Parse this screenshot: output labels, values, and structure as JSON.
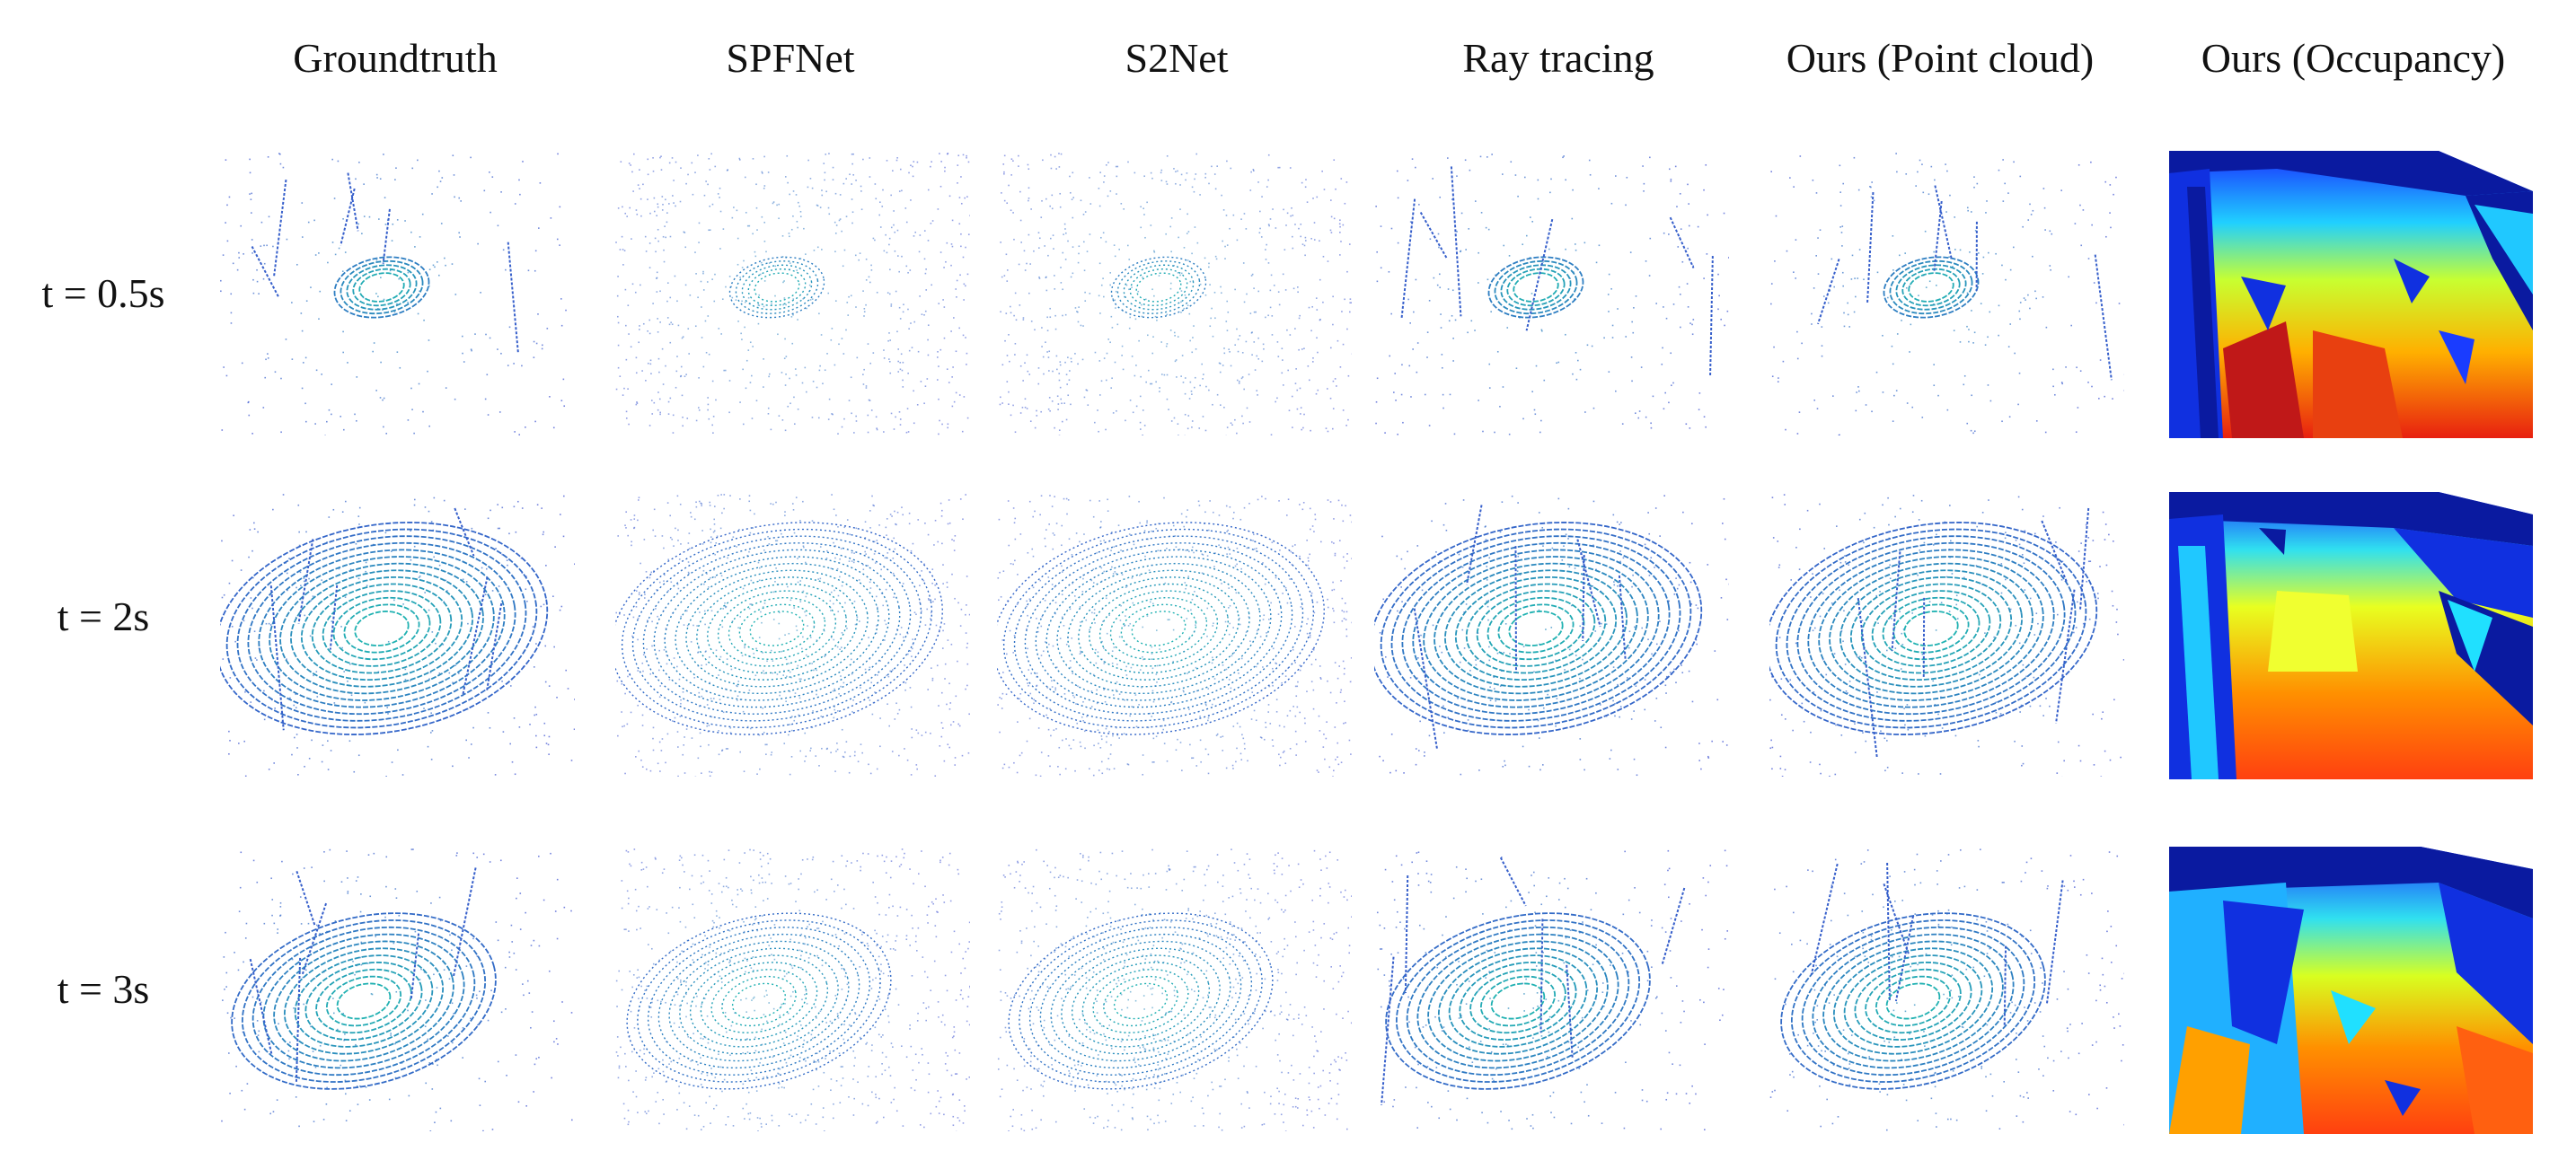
{
  "figure": {
    "columns": [
      "Groundtruth",
      "SPFNet",
      "S2Net",
      "Ray tracing",
      "Ours (Point cloud)",
      "Ours (Occupancy)"
    ],
    "rows": [
      "t = 0.5s",
      "t = 2s",
      "t = 3s"
    ]
  },
  "colors": {
    "near_points": "#1fb8b0",
    "far_points": "#3a4fd0",
    "occ_far": "#0a1aa0",
    "occ_mid": "#e8ff20",
    "occ_near": "#e83010"
  }
}
